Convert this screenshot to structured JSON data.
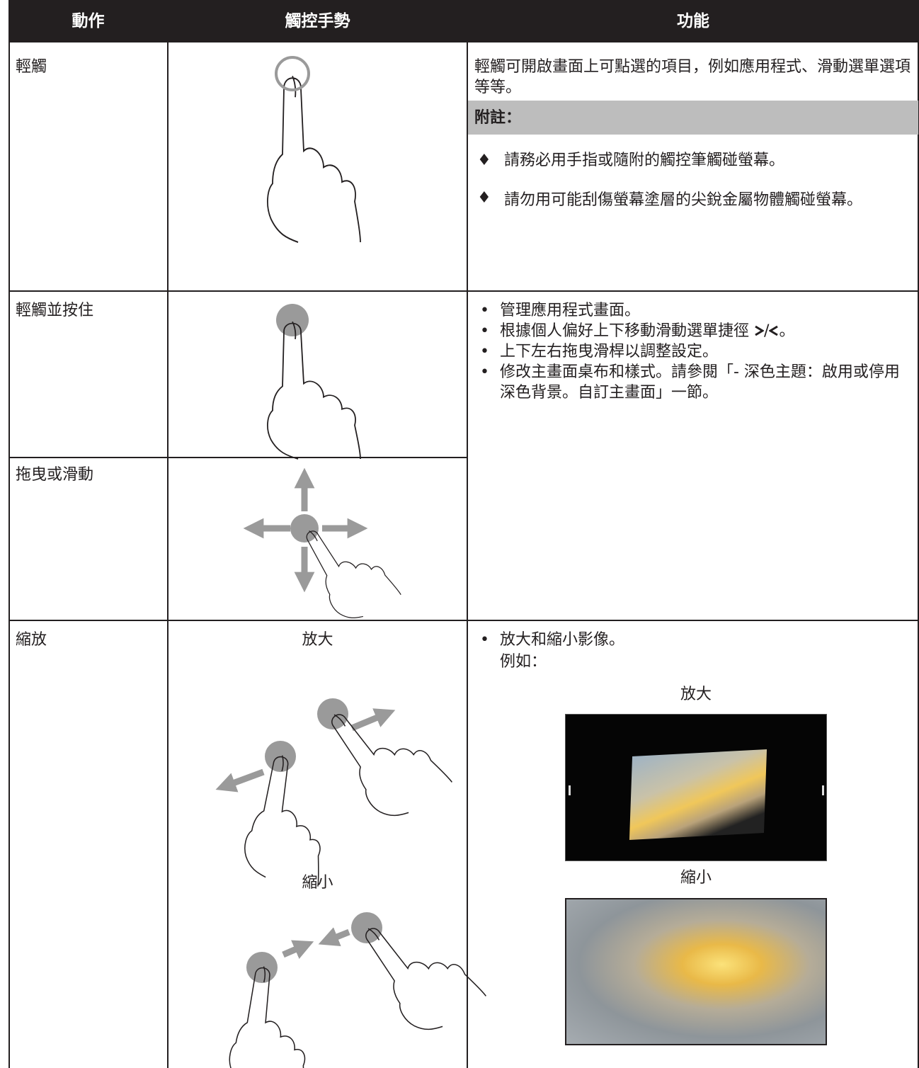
{
  "table": {
    "header": [
      "動作",
      "觸控手勢",
      "功能"
    ],
    "rows": [
      {
        "action": "輕觸",
        "function": {
          "text": "輕觸可開啟畫面上可點選的項目，例如應用程式、滑動選單選項等等。",
          "note_title": "附註：",
          "notes": [
            "請務必用手指或隨附的觸控筆觸碰螢幕。",
            "請勿用可能刮傷螢幕塗層的尖銳金屬物體觸碰螢幕。"
          ]
        }
      },
      {
        "action": "輕觸並按住",
        "function": {
          "bullets": [
            "管理應用程式畫面。",
            {
              "prefix": "根據個人偏好上下移動滑動選單捷徑",
              "icons": "/",
              "suffix": "。"
            },
            "上下左右拖曳滑桿以調整設定。",
            "修改主畫面桌布和樣式。請參閱「- 深色主題：啟用或停用深色背景。自訂主畫面」一節。"
          ]
        }
      },
      {
        "action": "拖曳或滑動"
      },
      {
        "action": "縮放",
        "gesture": {
          "zoom_in": "放大",
          "zoom_out": "縮小"
        },
        "function": {
          "bullet": "放大和縮小影像。",
          "example_label": "例如：",
          "zoom_in": "放大",
          "zoom_out": "縮小"
        }
      }
    ]
  }
}
